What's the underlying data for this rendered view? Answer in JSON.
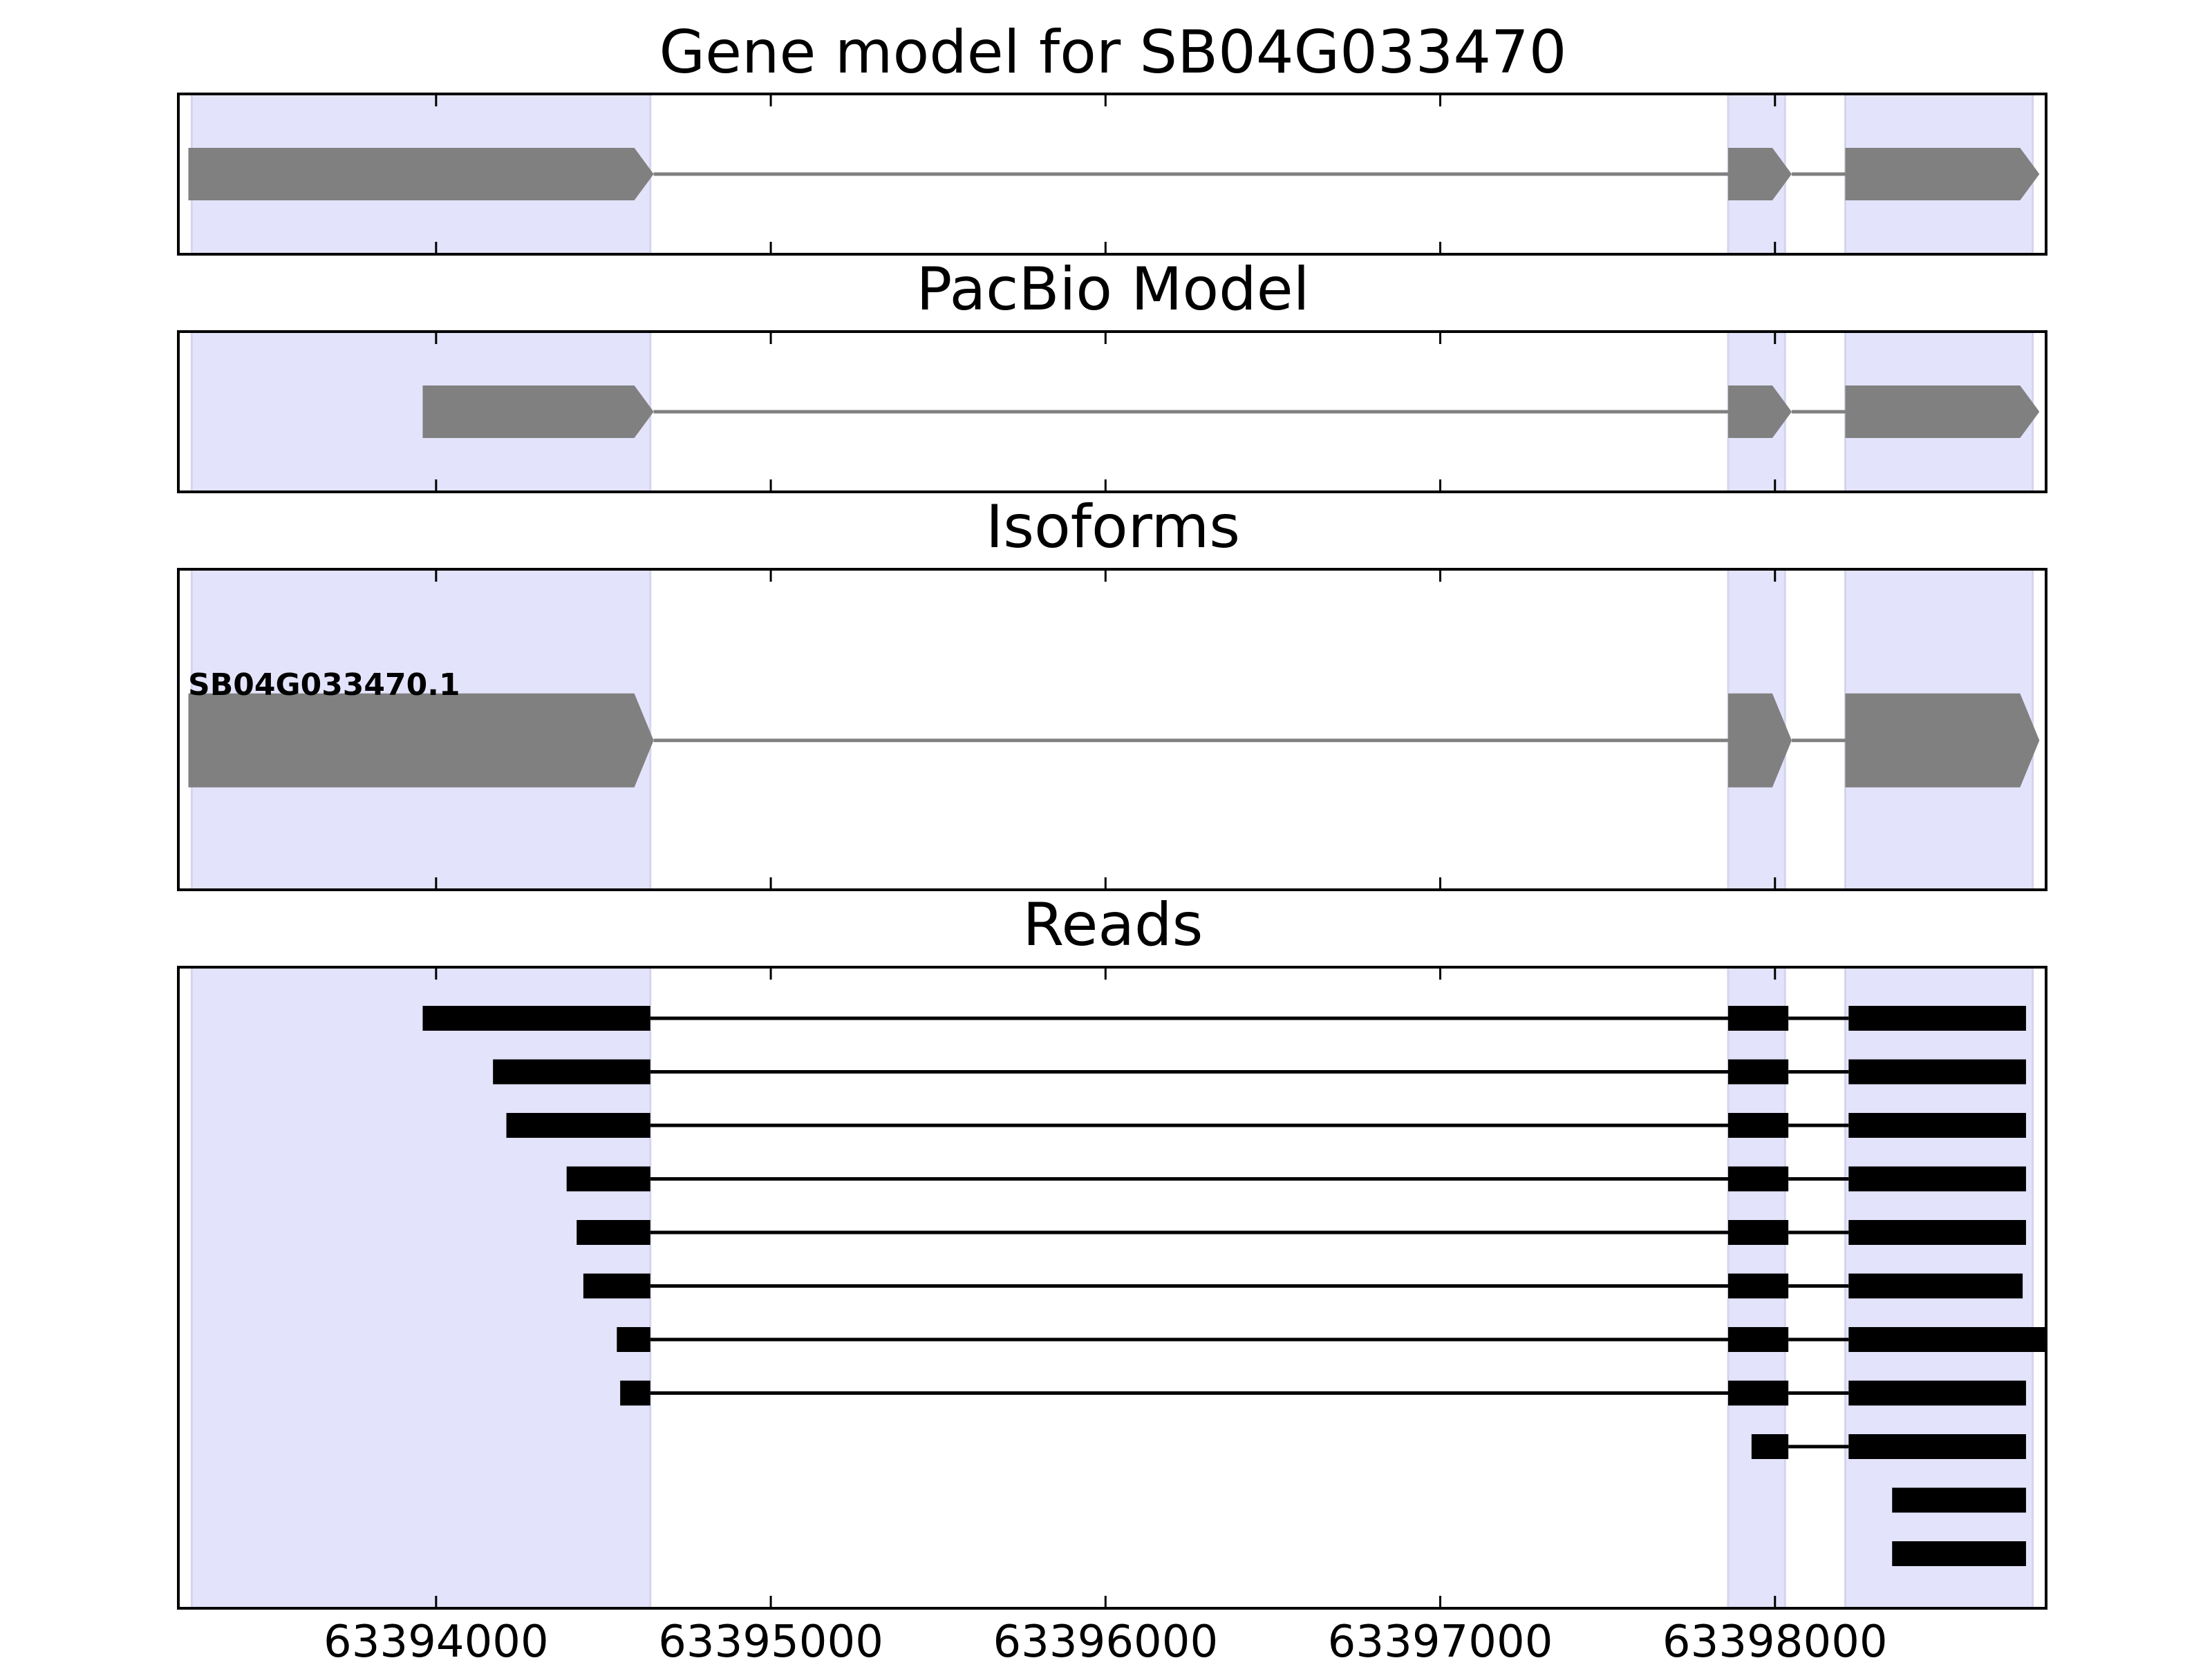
{
  "chart_data": {
    "type": "gene-model",
    "xlim": [
      63393230,
      63398810
    ],
    "xticks": [
      63394000,
      63395000,
      63396000,
      63397000,
      63398000
    ],
    "xtick_labels": [
      "63394000",
      "63395000",
      "63396000",
      "63397000",
      "63398000"
    ],
    "highlight_color": "#e3e3fb",
    "highlight_regions": [
      [
        63393270,
        63394640
      ],
      [
        63397860,
        63398030
      ],
      [
        63398210,
        63398770
      ]
    ],
    "panels": [
      {
        "title": "Gene model for SB04G033470",
        "kind": "model",
        "color": "#808080",
        "exons": [
          [
            63393260,
            63394650
          ],
          [
            63397860,
            63398050
          ],
          [
            63398210,
            63398790
          ]
        ]
      },
      {
        "title": "PacBio Model",
        "kind": "model",
        "color": "#808080",
        "exons": [
          [
            63393960,
            63394650
          ],
          [
            63397860,
            63398050
          ],
          [
            63398210,
            63398790
          ]
        ]
      },
      {
        "title": "Isoforms",
        "kind": "isoforms",
        "color": "#808080",
        "isoforms": [
          {
            "label": "SB04G033470.1",
            "exons": [
              [
                63393260,
                63394650
              ],
              [
                63397860,
                63398050
              ],
              [
                63398210,
                63398790
              ]
            ]
          }
        ]
      },
      {
        "title": "Reads",
        "kind": "reads",
        "color": "#000000",
        "reads": [
          [
            [
              63393960,
              63394640
            ],
            [
              63397860,
              63398040
            ],
            [
              63398220,
              63398750
            ]
          ],
          [
            [
              63394170,
              63394640
            ],
            [
              63397860,
              63398040
            ],
            [
              63398220,
              63398750
            ]
          ],
          [
            [
              63394210,
              63394640
            ],
            [
              63397860,
              63398040
            ],
            [
              63398220,
              63398750
            ]
          ],
          [
            [
              63394390,
              63394640
            ],
            [
              63397860,
              63398040
            ],
            [
              63398220,
              63398750
            ]
          ],
          [
            [
              63394420,
              63394640
            ],
            [
              63397860,
              63398040
            ],
            [
              63398220,
              63398750
            ]
          ],
          [
            [
              63394440,
              63394640
            ],
            [
              63397860,
              63398040
            ],
            [
              63398220,
              63398740
            ]
          ],
          [
            [
              63394540,
              63394640
            ],
            [
              63397860,
              63398040
            ],
            [
              63398220,
              63398810
            ]
          ],
          [
            [
              63394550,
              63394640
            ],
            [
              63397860,
              63398040
            ],
            [
              63398220,
              63398750
            ]
          ],
          [
            [
              63397930,
              63398040
            ],
            [
              63398220,
              63398750
            ]
          ],
          [
            [
              63398350,
              63398750
            ]
          ],
          [
            [
              63398350,
              63398750
            ]
          ]
        ]
      }
    ]
  }
}
